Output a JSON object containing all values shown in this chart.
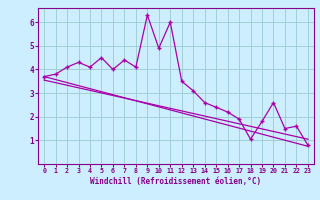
{
  "xlabel": "Windchill (Refroidissement éolien,°C)",
  "bg_color": "#cceeff",
  "line_color": "#aa00aa",
  "grid_color": "#99cccc",
  "axis_color": "#880088",
  "tick_color": "#880088",
  "xlim": [
    -0.5,
    23.5
  ],
  "ylim": [
    0,
    6.6
  ],
  "xticks": [
    0,
    1,
    2,
    3,
    4,
    5,
    6,
    7,
    8,
    9,
    10,
    11,
    12,
    13,
    14,
    15,
    16,
    17,
    18,
    19,
    20,
    21,
    22,
    23
  ],
  "yticks": [
    1,
    2,
    3,
    4,
    5,
    6
  ],
  "main_x": [
    0,
    1,
    2,
    3,
    4,
    5,
    6,
    7,
    8,
    9,
    10,
    11,
    12,
    13,
    14,
    15,
    16,
    17,
    18,
    19,
    20,
    21,
    22,
    23
  ],
  "main_y": [
    3.7,
    3.8,
    4.1,
    4.3,
    4.1,
    4.5,
    4.0,
    4.4,
    4.1,
    6.3,
    4.9,
    6.0,
    3.5,
    3.1,
    2.6,
    2.4,
    2.2,
    1.9,
    1.05,
    1.8,
    2.6,
    1.5,
    1.6,
    0.8
  ],
  "trend1_x": [
    0,
    23
  ],
  "trend1_y": [
    3.7,
    0.75
  ],
  "trend2_x": [
    0,
    23
  ],
  "trend2_y": [
    3.55,
    1.05
  ]
}
